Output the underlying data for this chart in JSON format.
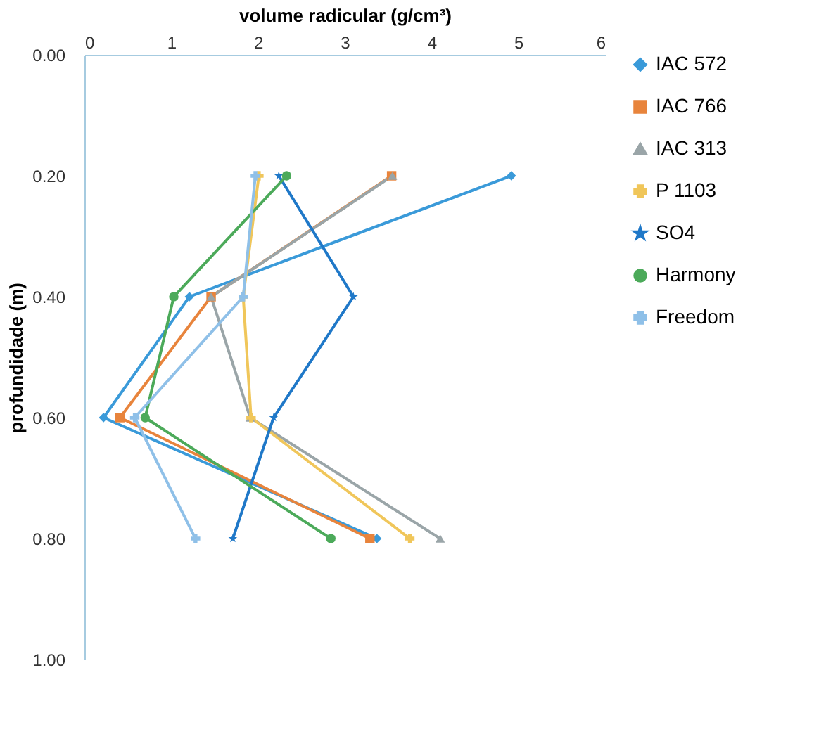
{
  "chart_data": {
    "type": "line",
    "xlabel": "volume radicular (g/cm³)",
    "ylabel": "profundidade (m)",
    "xlim": [
      0,
      6
    ],
    "xticks": [
      0,
      1,
      2,
      3,
      4,
      5,
      6
    ],
    "ylim": [
      1.0,
      0.0
    ],
    "yticks": [
      {
        "value": 0.0,
        "label": "0.00"
      },
      {
        "value": 0.2,
        "label": "0.20"
      },
      {
        "value": 0.4,
        "label": "0.40"
      },
      {
        "value": 0.6,
        "label": "0.60"
      },
      {
        "value": 0.8,
        "label": "0.80"
      },
      {
        "value": 1.0,
        "label": "1.00"
      }
    ],
    "grid": false,
    "legend": "right",
    "series": [
      {
        "name": "IAC 572",
        "color": "#3a9ad9",
        "marker": "diamond",
        "x": [
          4.92,
          1.21,
          0.22,
          3.37
        ],
        "values": [
          0.2,
          0.4,
          0.6,
          0.8
        ]
      },
      {
        "name": "IAC 766",
        "color": "#e8843c",
        "marker": "square",
        "x": [
          3.54,
          1.46,
          0.41,
          3.29
        ],
        "values": [
          0.2,
          0.4,
          0.6,
          0.8
        ]
      },
      {
        "name": "IAC 313",
        "color": "#9aa5a8",
        "marker": "triangle",
        "x": [
          3.55,
          1.46,
          1.91,
          4.1
        ],
        "values": [
          0.2,
          0.4,
          0.6,
          0.8
        ]
      },
      {
        "name": "P 1103",
        "color": "#f0c65a",
        "marker": "cross",
        "x": [
          2.01,
          1.83,
          1.92,
          3.75
        ],
        "values": [
          0.2,
          0.4,
          0.6,
          0.8
        ]
      },
      {
        "name": "SO4",
        "color": "#1f78c8",
        "marker": "star",
        "x": [
          2.24,
          3.1,
          2.18,
          1.71
        ],
        "values": [
          0.2,
          0.4,
          0.6,
          0.8
        ]
      },
      {
        "name": "Harmony",
        "color": "#4caa5a",
        "marker": "circle",
        "x": [
          2.33,
          1.03,
          0.7,
          2.84
        ],
        "values": [
          0.2,
          0.4,
          0.6,
          0.8
        ]
      },
      {
        "name": "Freedom",
        "color": "#8fc0e8",
        "marker": "cross",
        "x": [
          1.97,
          1.83,
          0.58,
          1.28
        ],
        "values": [
          0.2,
          0.4,
          0.6,
          0.8
        ]
      }
    ]
  }
}
